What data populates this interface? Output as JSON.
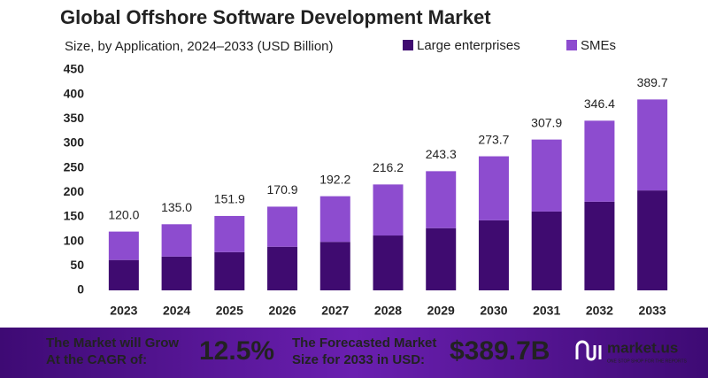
{
  "chart_data": {
    "type": "stacked_bar",
    "title": "Global Offshore Software Development Market",
    "subtitle": "Size, by Application, 2024–2033 (USD Billion)",
    "categories": [
      "2023",
      "2024",
      "2025",
      "2026",
      "2027",
      "2028",
      "2029",
      "2030",
      "2031",
      "2032",
      "2033"
    ],
    "series": [
      {
        "name": "Large enterprises",
        "color": "#3f0b70",
        "values": [
          62,
          69,
          78,
          89,
          99,
          112,
          127,
          143,
          161,
          181,
          204
        ]
      },
      {
        "name": "SMEs",
        "color": "#8d4ccf",
        "values": [
          58,
          66,
          73.9,
          81.9,
          93.2,
          104.2,
          116.3,
          130.7,
          146.9,
          165.4,
          185.7
        ]
      }
    ],
    "total_labels": [
      "120.0",
      "135.0",
      "151.9",
      "170.9",
      "192.2",
      "216.2",
      "243.3",
      "273.7",
      "307.9",
      "346.4",
      "389.7"
    ],
    "ylim": [
      0,
      450
    ],
    "yticks": [
      0,
      50,
      100,
      150,
      200,
      250,
      300,
      350,
      400,
      450
    ],
    "grid": false
  },
  "banner": {
    "cagr_text_1": "The Market will Grow",
    "cagr_text_2": "At the CAGR of:",
    "cagr_value": "12.5%",
    "forecast_text_1": "The Forecasted Market",
    "forecast_text_2": "Size for 2033 in USD:",
    "forecast_value": "$389.7B",
    "brand": "market.us",
    "tagline": "ONE STOP SHOP FOR THE REPORTS"
  }
}
